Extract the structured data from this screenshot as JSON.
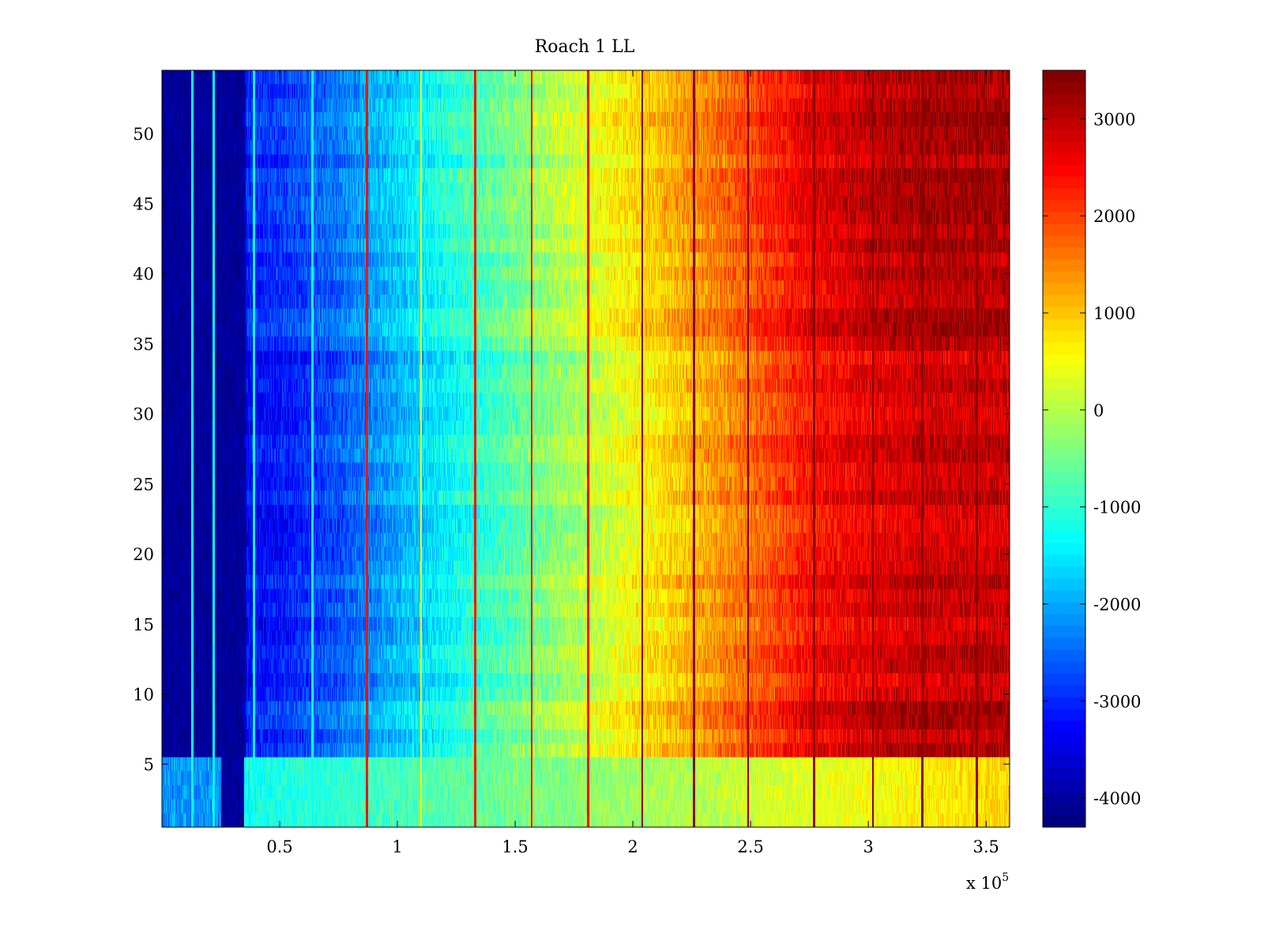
{
  "chart_data": {
    "type": "heatmap",
    "title": "Roach 1 LL",
    "xlabel": "",
    "ylabel": "",
    "x_multiplier_label": "x 10",
    "x_multiplier_exponent": "5",
    "xlim": [
      0,
      3.6
    ],
    "ylim": [
      0.5,
      54.5
    ],
    "x_ticks": [
      0.5,
      1,
      1.5,
      2,
      2.5,
      3,
      3.5
    ],
    "x_tick_labels": [
      "0.5",
      "1",
      "1.5",
      "2",
      "2.5",
      "3",
      "3.5"
    ],
    "y_ticks": [
      5,
      10,
      15,
      20,
      25,
      30,
      35,
      40,
      45,
      50
    ],
    "y_tick_labels": [
      "5",
      "10",
      "15",
      "20",
      "25",
      "30",
      "35",
      "40",
      "45",
      "50"
    ],
    "rows": 54,
    "colormap": "jet",
    "colorbar": {
      "clim": [
        -4300,
        3500
      ],
      "ticks": [
        3000,
        2000,
        1000,
        0,
        -1000,
        -2000,
        -3000,
        -4000
      ],
      "tick_labels": [
        "3000",
        "2000",
        "1000",
        "0",
        "-1000",
        "-2000",
        "-3000",
        "-4000"
      ],
      "placement": "right"
    },
    "column_profile": {
      "x": [
        0.0,
        0.35,
        0.36,
        0.5,
        0.75,
        1.0,
        1.25,
        1.5,
        1.75,
        2.0,
        2.25,
        2.5,
        2.75,
        3.0,
        3.25,
        3.6
      ],
      "value": [
        -4300,
        -4300,
        -3300,
        -3200,
        -2700,
        -2000,
        -1300,
        -700,
        -100,
        500,
        1100,
        1700,
        2400,
        2700,
        2900,
        2900
      ]
    },
    "bottom_rows_offset": {
      "rows": [
        1,
        2,
        3,
        4,
        5
      ],
      "value_near_x0": -1500,
      "value_near_x3_6": 900
    },
    "narrow_bands": [
      {
        "x": 0.13,
        "color": "cyan"
      },
      {
        "x": 0.22,
        "color": "cyan"
      },
      {
        "x": 0.39,
        "color": "cyan"
      },
      {
        "x": 0.64,
        "color": "cyan"
      },
      {
        "x": 0.87,
        "color": "red"
      },
      {
        "x": 1.1,
        "color": "yellow"
      },
      {
        "x": 1.33,
        "color": "red"
      },
      {
        "x": 1.57,
        "color": "red"
      },
      {
        "x": 1.81,
        "color": "red"
      },
      {
        "x": 2.04,
        "color": "dark-red"
      },
      {
        "x": 2.26,
        "color": "dark-red"
      },
      {
        "x": 2.49,
        "color": "dark-red"
      },
      {
        "x": 2.77,
        "color": "dark-red"
      },
      {
        "x": 3.02,
        "color": "dark-red"
      },
      {
        "x": 3.23,
        "color": "dark-red"
      },
      {
        "x": 3.46,
        "color": "dark-red"
      }
    ]
  }
}
